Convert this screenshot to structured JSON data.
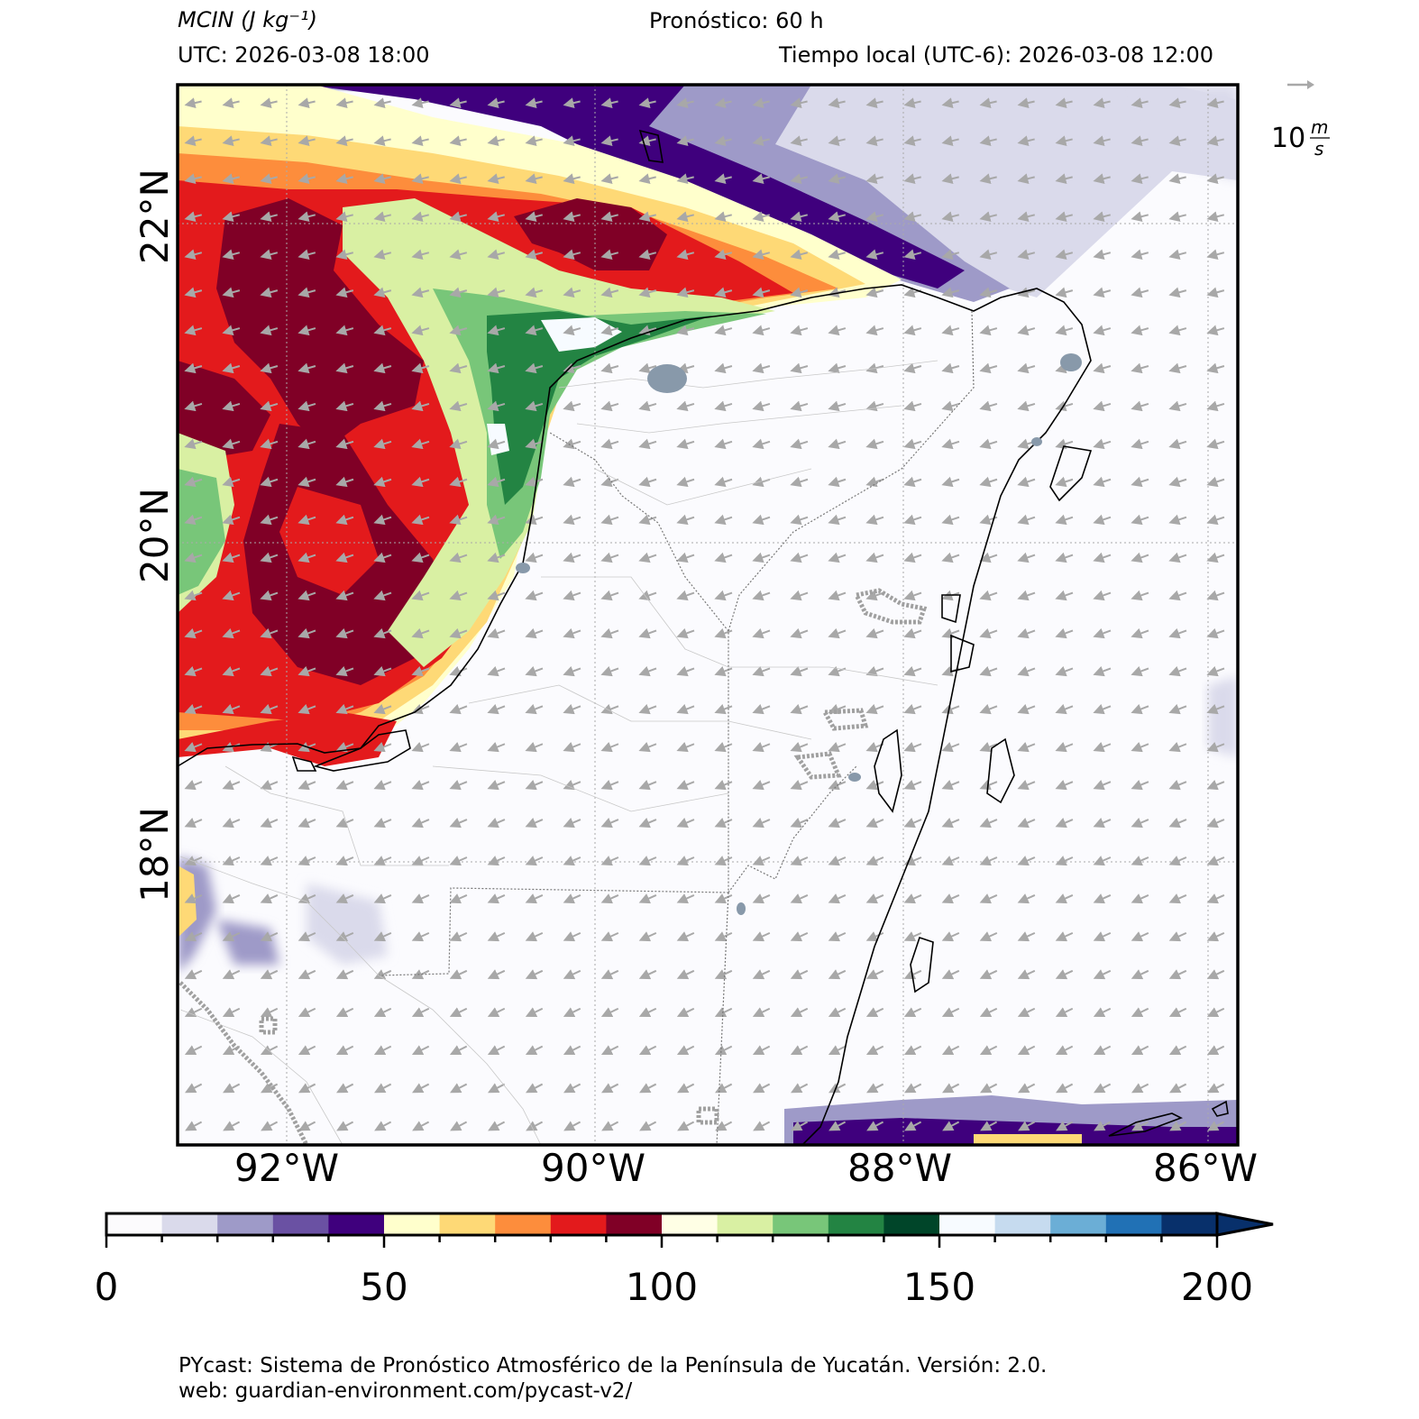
{
  "header": {
    "variable": "MCIN (J kg⁻¹)",
    "forecast": "Pronóstico: 60 h",
    "utc": "UTC:  2026-03-08 18:00",
    "local_time": "Tiempo local (UTC-6): 2026-03-08 12:00"
  },
  "map": {
    "lon_range": [
      -92.35,
      -85.95
    ],
    "lat_range": [
      16.5,
      22.9
    ],
    "lat_labels": [
      "22°N",
      "20°N",
      "18°N"
    ],
    "lat_values": [
      22,
      20,
      18
    ],
    "lon_labels": [
      "92°W",
      "90°W",
      "88°W",
      "86°W"
    ],
    "lon_values": [
      -92,
      -90,
      -88,
      -86
    ],
    "wind_reference": {
      "label_value": "10",
      "unit_top": "m",
      "unit_bottom": "s"
    }
  },
  "colorbar": {
    "min": 0,
    "max": 200,
    "step": 10,
    "extend": "max",
    "tick_labels": [
      "0",
      "50",
      "100",
      "150",
      "200"
    ],
    "tick_values": [
      0,
      50,
      100,
      150,
      200
    ],
    "colors": [
      "#fcfbfd",
      "#dadaeb",
      "#9e9ac8",
      "#6a51a3",
      "#3f007d",
      "#ffffcc",
      "#fed976",
      "#fd8d3c",
      "#e31a1c",
      "#800026",
      "#ffffe5",
      "#d9f0a3",
      "#78c679",
      "#238443",
      "#004529",
      "#f7fbff",
      "#c6dbef",
      "#6baed6",
      "#2171b5",
      "#08306b"
    ],
    "extend_color": "#08306b"
  },
  "footer": {
    "line1": "PYcast: Sistema de Pronóstico Atmosférico de la Península de Yucatán. Versión: 2.0.",
    "line2": "web: guardian-environment.com/pycast-v2/"
  }
}
